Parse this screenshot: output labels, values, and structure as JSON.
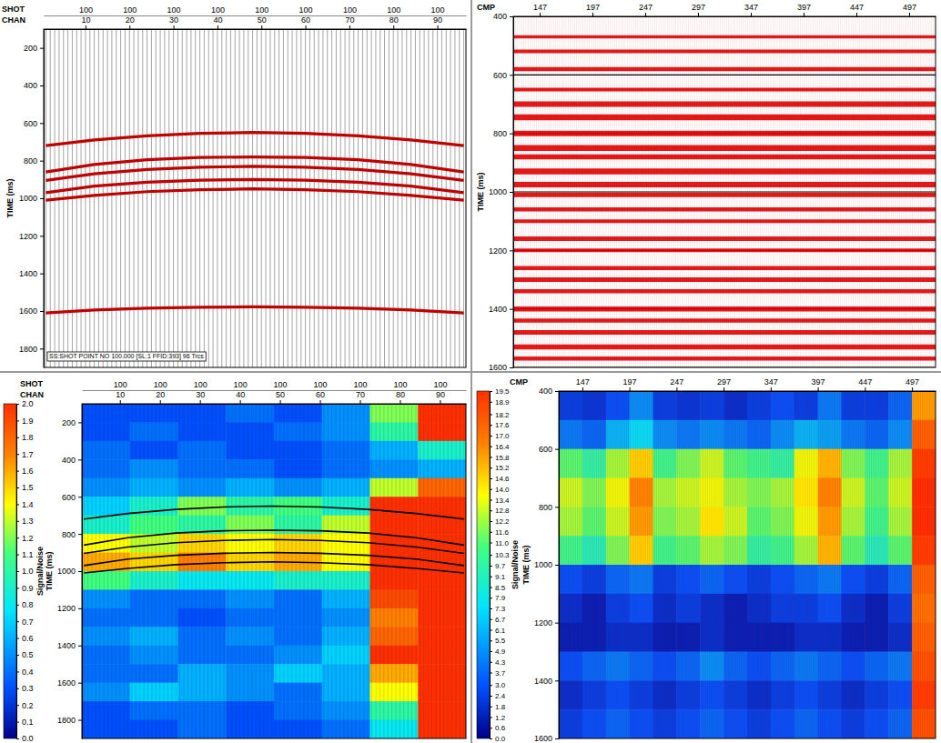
{
  "chart_data": [
    {
      "type": "line",
      "xlabel": "CHAN",
      "x2label": "SHOT",
      "ylabel": "TIME (ms)",
      "xlim": [
        0.5,
        96.5
      ],
      "xticks": [
        10,
        20,
        30,
        40,
        50,
        60,
        70,
        80,
        90
      ],
      "x2ticks": [
        {
          "value": 10,
          "label": "100"
        },
        {
          "value": 20,
          "label": "100"
        },
        {
          "value": 30,
          "label": "100"
        },
        {
          "value": 40,
          "label": "100"
        },
        {
          "value": 50,
          "label": "100"
        },
        {
          "value": 60,
          "label": "100"
        },
        {
          "value": 70,
          "label": "100"
        },
        {
          "value": 80,
          "label": "100"
        },
        {
          "value": 90,
          "label": "100"
        }
      ],
      "ylim": [
        100,
        1900
      ],
      "yticks": [
        200,
        400,
        600,
        800,
        1000,
        1200,
        1400,
        1600,
        1800
      ],
      "annotation": "SS:SHOT POINT NO 100.000 [SL:1 FFID:393] 96 Trcs",
      "x": [
        1,
        12,
        24,
        36,
        48,
        60,
        72,
        84,
        96
      ],
      "series": [
        {
          "color": "#c00000",
          "values": [
            720,
            690,
            668,
            655,
            650,
            655,
            668,
            690,
            720
          ]
        },
        {
          "color": "#c00000",
          "values": [
            860,
            820,
            795,
            783,
            780,
            783,
            795,
            820,
            860
          ]
        },
        {
          "color": "#c00000",
          "values": [
            905,
            870,
            847,
            835,
            830,
            835,
            847,
            870,
            905
          ]
        },
        {
          "color": "#c00000",
          "values": [
            970,
            935,
            915,
            904,
            900,
            904,
            915,
            935,
            970
          ]
        },
        {
          "color": "#c00000",
          "values": [
            1010,
            985,
            965,
            955,
            950,
            955,
            965,
            985,
            1010
          ]
        },
        {
          "color": "#c00000",
          "values": [
            1610,
            1595,
            1585,
            1580,
            1578,
            1580,
            1585,
            1595,
            1610
          ]
        }
      ]
    },
    {
      "type": "stack",
      "xlabel": "CMP",
      "ylabel": "TIME (ms)",
      "xlim": [
        122,
        522
      ],
      "xticks": [
        147,
        197,
        247,
        297,
        347,
        397,
        447,
        497
      ],
      "ylim": [
        400,
        1600
      ],
      "yticks": [
        400,
        600,
        800,
        1000,
        1200,
        1400,
        1600
      ],
      "grid": true,
      "color": "#e00000",
      "reflector_times": [
        470,
        520,
        580,
        650,
        700,
        745,
        800,
        850,
        880,
        930,
        975,
        1010,
        1060,
        1100,
        1160,
        1200,
        1260,
        1300,
        1340,
        1400,
        1440,
        1480,
        1530,
        1570
      ],
      "reflector_strength": [
        0.4,
        0.5,
        0.6,
        0.5,
        0.9,
        1.0,
        0.9,
        1.0,
        0.8,
        1.0,
        0.9,
        0.7,
        0.6,
        0.5,
        0.7,
        0.5,
        0.6,
        0.7,
        0.6,
        0.8,
        0.6,
        0.7,
        0.8,
        0.6
      ]
    },
    {
      "type": "heatmap",
      "xlabel": "CHAN",
      "x2label": "SHOT",
      "ylabel": "TIME (ms)",
      "xlim": [
        0.5,
        96.5
      ],
      "xticks": [
        10,
        20,
        30,
        40,
        50,
        60,
        70,
        80,
        90
      ],
      "x2ticks": [
        {
          "value": 10,
          "label": "100"
        },
        {
          "value": 20,
          "label": "100"
        },
        {
          "value": 30,
          "label": "100"
        },
        {
          "value": 40,
          "label": "100"
        },
        {
          "value": 50,
          "label": "100"
        },
        {
          "value": 60,
          "label": "100"
        },
        {
          "value": 70,
          "label": "100"
        },
        {
          "value": 80,
          "label": "100"
        },
        {
          "value": 90,
          "label": "100"
        }
      ],
      "ylim": [
        100,
        1900
      ],
      "yticks": [
        200,
        400,
        600,
        800,
        1000,
        1200,
        1400,
        1600,
        1800
      ],
      "x_edges": [
        0.5,
        12.5,
        24.5,
        36.5,
        48.5,
        60.5,
        72.5,
        84.5,
        96.5
      ],
      "y_edges": [
        100,
        200,
        300,
        400,
        500,
        600,
        700,
        800,
        900,
        1000,
        1100,
        1200,
        1300,
        1400,
        1500,
        1600,
        1700,
        1800,
        1900
      ],
      "cells": [
        [
          0.3,
          0.3,
          0.3,
          0.4,
          0.3,
          0.5,
          1.2,
          2.0
        ],
        [
          0.3,
          0.4,
          0.3,
          0.3,
          0.4,
          0.5,
          1.0,
          2.0
        ],
        [
          0.4,
          0.3,
          0.4,
          0.3,
          0.3,
          0.4,
          0.6,
          0.9
        ],
        [
          0.4,
          0.5,
          0.4,
          0.4,
          0.3,
          0.4,
          0.5,
          0.6
        ],
        [
          0.5,
          0.6,
          0.5,
          0.6,
          0.5,
          0.6,
          1.3,
          1.8
        ],
        [
          0.7,
          0.9,
          1.2,
          1.0,
          1.1,
          0.9,
          2.0,
          2.0
        ],
        [
          0.9,
          1.1,
          1.0,
          1.2,
          1.0,
          1.3,
          2.0,
          2.0
        ],
        [
          1.4,
          1.3,
          1.5,
          1.4,
          1.5,
          1.4,
          2.0,
          2.0
        ],
        [
          1.6,
          1.5,
          1.7,
          1.5,
          1.6,
          1.4,
          2.0,
          2.0
        ],
        [
          1.1,
          0.9,
          0.8,
          0.8,
          0.9,
          0.9,
          2.0,
          2.0
        ],
        [
          0.5,
          0.4,
          0.4,
          0.5,
          0.4,
          0.6,
          1.9,
          2.0
        ],
        [
          0.4,
          0.4,
          0.3,
          0.4,
          0.4,
          0.5,
          1.7,
          2.0
        ],
        [
          0.5,
          0.6,
          0.4,
          0.5,
          0.4,
          0.6,
          1.8,
          2.0
        ],
        [
          0.4,
          0.5,
          0.4,
          0.4,
          0.5,
          0.7,
          2.0,
          2.0
        ],
        [
          0.4,
          0.4,
          0.6,
          0.5,
          0.7,
          0.6,
          1.6,
          2.0
        ],
        [
          0.5,
          0.7,
          0.6,
          0.5,
          0.4,
          0.6,
          1.4,
          2.0
        ],
        [
          0.3,
          0.4,
          0.4,
          0.3,
          0.4,
          0.5,
          1.0,
          2.0
        ],
        [
          0.3,
          0.3,
          0.4,
          0.3,
          0.3,
          0.4,
          0.8,
          2.0
        ]
      ],
      "colorbar": {
        "label": "Signal/Noise",
        "range": [
          0,
          2
        ],
        "ticks": [
          {
            "value": 0,
            "label": "0.0"
          },
          0.1,
          0.2,
          0.3,
          0.4,
          0.5,
          0.6,
          0.7,
          0.8,
          0.9,
          {
            "value": 1,
            "label": "1.0"
          },
          1.1,
          1.2,
          1.3,
          1.4,
          1.5,
          1.6,
          1.7,
          1.8,
          1.9,
          {
            "value": 2,
            "label": "2.0"
          }
        ]
      },
      "x": [
        1,
        12,
        24,
        36,
        48,
        60,
        72,
        84,
        96
      ],
      "series": [
        {
          "color": "#000000",
          "values": [
            720,
            690,
            668,
            655,
            650,
            655,
            668,
            690,
            720
          ]
        },
        {
          "color": "#000000",
          "values": [
            860,
            820,
            795,
            783,
            780,
            783,
            795,
            820,
            860
          ]
        },
        {
          "color": "#000000",
          "values": [
            905,
            870,
            847,
            835,
            830,
            835,
            847,
            870,
            905
          ]
        },
        {
          "color": "#000000",
          "values": [
            970,
            935,
            915,
            904,
            900,
            904,
            915,
            935,
            970
          ]
        },
        {
          "color": "#000000",
          "values": [
            1010,
            985,
            965,
            955,
            950,
            955,
            965,
            985,
            1010
          ]
        }
      ]
    },
    {
      "type": "heatmap",
      "xlabel": "CMP",
      "ylabel": "TIME (ms)",
      "xlim": [
        122,
        522
      ],
      "xticks": [
        147,
        197,
        247,
        297,
        347,
        397,
        447,
        497
      ],
      "ylim": [
        400,
        1600
      ],
      "yticks": [
        400,
        600,
        800,
        1000,
        1200,
        1400,
        1600
      ],
      "x_edges": [
        122,
        147,
        172,
        197,
        222,
        247,
        272,
        297,
        322,
        347,
        372,
        397,
        422,
        447,
        472,
        497,
        522
      ],
      "y_edges": [
        400,
        500,
        600,
        700,
        800,
        900,
        1000,
        1100,
        1200,
        1300,
        1400,
        1500,
        1600
      ],
      "cells": [
        [
          2.4,
          2.1,
          3.0,
          4.9,
          2.4,
          2.1,
          2.4,
          1.8,
          2.4,
          3.0,
          2.4,
          4.3,
          2.4,
          2.4,
          3.7,
          15.8
        ],
        [
          4.3,
          3.7,
          6.1,
          7.3,
          4.9,
          4.3,
          4.9,
          4.3,
          3.7,
          4.9,
          6.1,
          5.5,
          4.3,
          3.7,
          4.9,
          17.6
        ],
        [
          11.0,
          9.7,
          12.2,
          14.6,
          10.3,
          11.6,
          12.8,
          11.0,
          10.3,
          9.7,
          13.4,
          15.2,
          11.6,
          10.3,
          12.2,
          18.9
        ],
        [
          12.8,
          11.6,
          13.4,
          16.4,
          12.2,
          12.8,
          13.4,
          12.2,
          11.6,
          12.2,
          14.0,
          16.4,
          12.8,
          11.0,
          12.8,
          19.5
        ],
        [
          12.2,
          11.0,
          12.8,
          15.8,
          11.6,
          12.2,
          14.0,
          12.8,
          11.0,
          11.6,
          13.4,
          15.8,
          12.2,
          10.3,
          12.2,
          19.5
        ],
        [
          10.3,
          9.1,
          11.6,
          14.6,
          10.3,
          11.0,
          12.2,
          11.6,
          9.7,
          10.3,
          12.2,
          15.2,
          11.0,
          9.1,
          11.0,
          18.9
        ],
        [
          3.0,
          2.4,
          3.7,
          4.3,
          2.4,
          3.0,
          3.7,
          3.0,
          2.4,
          3.0,
          3.7,
          4.3,
          3.0,
          2.4,
          3.7,
          17.6
        ],
        [
          1.8,
          1.2,
          2.4,
          3.0,
          1.8,
          2.4,
          1.8,
          1.2,
          1.8,
          2.4,
          2.4,
          3.0,
          1.8,
          1.2,
          2.4,
          17.0
        ],
        [
          1.2,
          1.2,
          1.8,
          1.8,
          1.2,
          1.2,
          1.8,
          1.2,
          1.2,
          1.2,
          1.8,
          1.8,
          1.2,
          1.2,
          1.8,
          17.6
        ],
        [
          3.0,
          3.7,
          4.3,
          3.7,
          3.0,
          3.7,
          4.9,
          3.7,
          3.0,
          3.7,
          4.3,
          3.7,
          3.0,
          3.7,
          4.3,
          18.2
        ],
        [
          1.8,
          2.4,
          3.0,
          2.4,
          1.8,
          2.4,
          3.0,
          2.4,
          1.8,
          2.4,
          3.0,
          2.4,
          1.8,
          2.4,
          3.0,
          18.9
        ],
        [
          2.4,
          3.0,
          3.7,
          3.0,
          2.4,
          3.0,
          3.7,
          3.0,
          2.4,
          3.0,
          3.7,
          3.0,
          2.4,
          3.0,
          3.7,
          18.2
        ]
      ],
      "colorbar": {
        "label": "Signal/Noise",
        "range": [
          0,
          19.5
        ],
        "ticks": [
          {
            "value": 0,
            "label": "0.0"
          },
          0.6,
          1.2,
          1.8,
          2.4,
          {
            "value": 3,
            "label": "3.0"
          },
          3.7,
          4.3,
          4.9,
          5.5,
          6.1,
          6.7,
          7.3,
          7.9,
          8.5,
          9.1,
          9.7,
          10.3,
          {
            "value": 11,
            "label": "11.0"
          },
          11.6,
          12.2,
          12.8,
          13.4,
          {
            "value": 14,
            "label": "14.0"
          },
          14.6,
          15.2,
          15.8,
          16.4,
          {
            "value": 17,
            "label": "17.0"
          },
          17.6,
          18.2,
          18.9,
          19.5
        ]
      }
    }
  ]
}
